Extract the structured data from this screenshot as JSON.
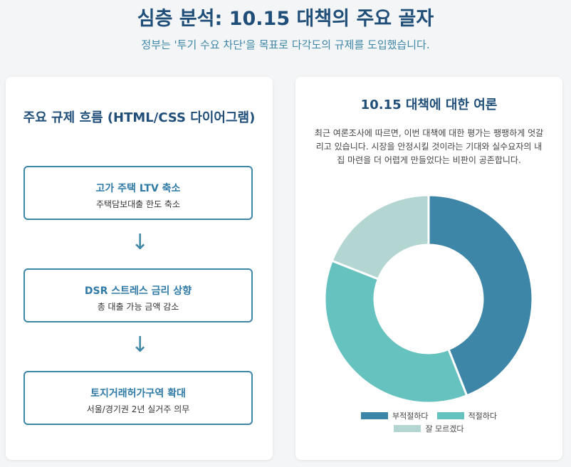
{
  "header": {
    "title": "심층 분석: 10.15 대책의 주요 골자",
    "subtitle": "정부는 '투기 수요 차단'을 목표로 다각도의 규제를 도입했습니다."
  },
  "flow": {
    "title": "주요 규제 흐름 (HTML/CSS 다이어그램)",
    "steps": [
      {
        "title": "고가 주택 LTV 축소",
        "desc": "주택담보대출 한도 축소"
      },
      {
        "title": "DSR 스트레스 금리 상향",
        "desc": "총 대출 가능 금액 감소"
      },
      {
        "title": "토지거래허가구역 확대",
        "desc": "서울/경기권 2년 실거주 의무"
      }
    ],
    "arrow_glyph": "↓"
  },
  "opinion": {
    "title": "10.15 대책에 대한 여론",
    "description": "최근 여론조사에 따르면, 이번 대책에 대한 평가는 팽팽하게 엇갈리고 있습니다. 시장을 안정시킬 것이라는 기대와 실수요자의 내 집 마련을 더 어렵게 만들었다는 비판이 공존합니다."
  },
  "chart_data": {
    "type": "pie",
    "variant": "doughnut",
    "categories": [
      "부적절하다",
      "적절하다",
      "잘 모르겠다"
    ],
    "values": [
      44,
      37,
      19
    ],
    "colors": [
      "#3e86a8",
      "#66c2be",
      "#b3d6d3"
    ],
    "legend_position": "bottom"
  }
}
